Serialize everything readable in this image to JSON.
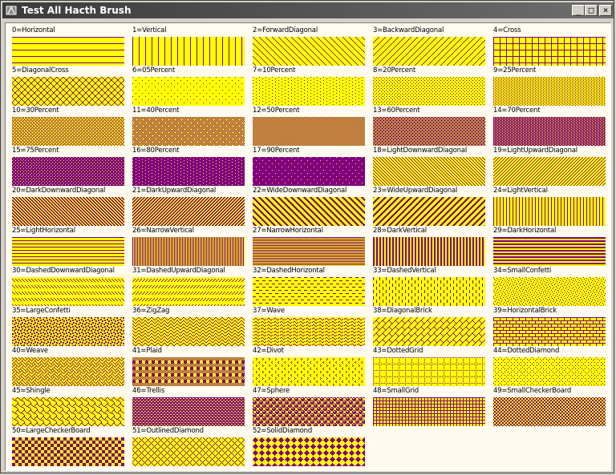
{
  "window": {
    "title": "Test All Hacth Brush",
    "minimize_glyph": "_",
    "maximize_glyph": "□",
    "close_glyph": "×"
  },
  "colors": {
    "foreground": "#800080",
    "background": "#ffff00",
    "client_bg": "#fffbf0"
  },
  "brushes": [
    {
      "label": "0=Horizontal",
      "name": "horizontal"
    },
    {
      "label": "1=Vertical",
      "name": "vertical"
    },
    {
      "label": "2=ForwardDiagonal",
      "name": "forward-diagonal"
    },
    {
      "label": "3=BackwardDiagonal",
      "name": "backward-diagonal"
    },
    {
      "label": "4=Cross",
      "name": "cross"
    },
    {
      "label": "5=DiagonalCross",
      "name": "diagonal-cross"
    },
    {
      "label": "6=05Percent",
      "name": "percent-05"
    },
    {
      "label": "7=10Percent",
      "name": "percent-10"
    },
    {
      "label": "8=20Percent",
      "name": "percent-20"
    },
    {
      "label": "9=25Percent",
      "name": "percent-25"
    },
    {
      "label": "10=30Percent",
      "name": "percent-30"
    },
    {
      "label": "11=40Percent",
      "name": "percent-40"
    },
    {
      "label": "12=50Percent",
      "name": "percent-50"
    },
    {
      "label": "13=60Percent",
      "name": "percent-60"
    },
    {
      "label": "14=70Percent",
      "name": "percent-70"
    },
    {
      "label": "15=75Percent",
      "name": "percent-75"
    },
    {
      "label": "16=80Percent",
      "name": "percent-80"
    },
    {
      "label": "17=90Percent",
      "name": "percent-90"
    },
    {
      "label": "18=LightDownwardDiagonal",
      "name": "light-downward-diagonal"
    },
    {
      "label": "19=LightUpwardDiagonal",
      "name": "light-upward-diagonal"
    },
    {
      "label": "20=DarkDownwardDiagonal",
      "name": "dark-downward-diagonal"
    },
    {
      "label": "21=DarkUpwardDiagonal",
      "name": "dark-upward-diagonal"
    },
    {
      "label": "22=WideDownwardDiagonal",
      "name": "wide-downward-diagonal"
    },
    {
      "label": "23=WideUpwardDiagonal",
      "name": "wide-upward-diagonal"
    },
    {
      "label": "24=LightVertical",
      "name": "light-vertical"
    },
    {
      "label": "25=LightHorizontal",
      "name": "light-horizontal"
    },
    {
      "label": "26=NarrowVertical",
      "name": "narrow-vertical"
    },
    {
      "label": "27=NarrowHorizontal",
      "name": "narrow-horizontal"
    },
    {
      "label": "28=DarkVertical",
      "name": "dark-vertical"
    },
    {
      "label": "29=DarkHorizontal",
      "name": "dark-horizontal"
    },
    {
      "label": "30=DashedDownwardDiagonal",
      "name": "dashed-downward-diagonal"
    },
    {
      "label": "31=DashedUpwardDiagonal",
      "name": "dashed-upward-diagonal"
    },
    {
      "label": "32=DashedHorizontal",
      "name": "dashed-horizontal"
    },
    {
      "label": "33=DashedVertical",
      "name": "dashed-vertical"
    },
    {
      "label": "34=SmallConfetti",
      "name": "small-confetti"
    },
    {
      "label": "35=LargeConfetti",
      "name": "large-confetti"
    },
    {
      "label": "36=ZigZag",
      "name": "zigzag"
    },
    {
      "label": "37=Wave",
      "name": "wave"
    },
    {
      "label": "38=DiagonalBrick",
      "name": "diagonal-brick"
    },
    {
      "label": "39=HorizontalBrick",
      "name": "horizontal-brick"
    },
    {
      "label": "40=Weave",
      "name": "weave"
    },
    {
      "label": "41=Plaid",
      "name": "plaid"
    },
    {
      "label": "42=Divot",
      "name": "divot"
    },
    {
      "label": "43=DottedGrid",
      "name": "dotted-grid"
    },
    {
      "label": "44=DottedDiamond",
      "name": "dotted-diamond"
    },
    {
      "label": "45=Shingle",
      "name": "shingle"
    },
    {
      "label": "46=Trellis",
      "name": "trellis"
    },
    {
      "label": "47=Sphere",
      "name": "sphere"
    },
    {
      "label": "48=SmallGrid",
      "name": "small-grid"
    },
    {
      "label": "49=SmallCheckerBoard",
      "name": "small-checkerboard"
    },
    {
      "label": "50=LargeCheckerBoard",
      "name": "large-checkerboard"
    },
    {
      "label": "51=OutlinedDiamond",
      "name": "outlined-diamond"
    },
    {
      "label": "52=SolidDiamond",
      "name": "solid-diamond"
    }
  ]
}
